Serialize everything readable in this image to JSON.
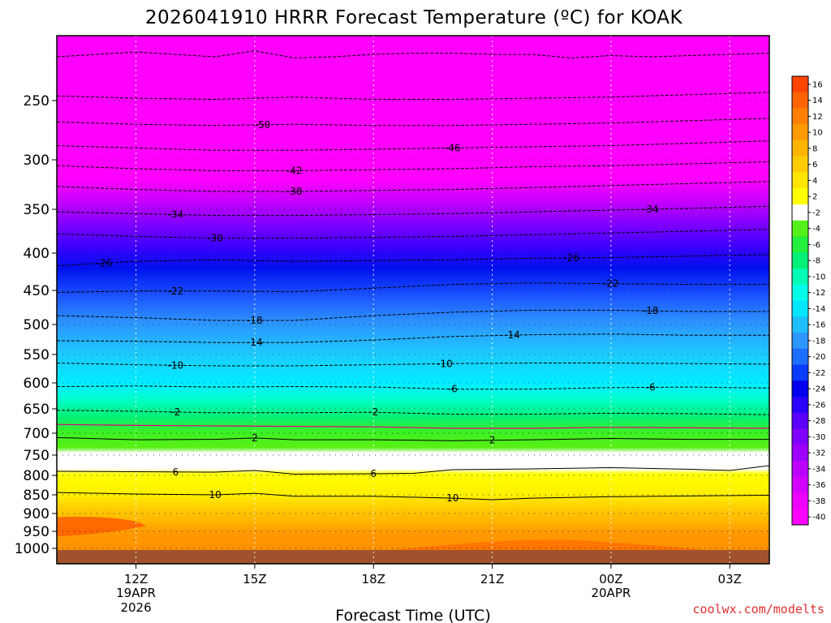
{
  "chart_data": {
    "type": "heatmap",
    "title": "2026041910 HRRR Forecast Temperature (ºC) for KOAK",
    "xlabel": "Forecast Time (UTC)",
    "ylabel": "",
    "credit": "coolwx.com/modelts",
    "y_ticks": [
      "250",
      "300",
      "350",
      "400",
      "450",
      "500",
      "550",
      "600",
      "650",
      "700",
      "750",
      "800",
      "850",
      "900",
      "950",
      "1000"
    ],
    "y_tick_values": [
      250,
      300,
      350,
      400,
      450,
      500,
      550,
      600,
      650,
      700,
      750,
      800,
      850,
      900,
      950,
      1000
    ],
    "x_ticks": [
      {
        "hour": 12,
        "label": "12Z",
        "sub1": "19APR",
        "sub2": "2026"
      },
      {
        "hour": 15,
        "label": "15Z",
        "sub1": "",
        "sub2": ""
      },
      {
        "hour": 18,
        "label": "18Z",
        "sub1": "",
        "sub2": ""
      },
      {
        "hour": 21,
        "label": "21Z",
        "sub1": "",
        "sub2": ""
      },
      {
        "hour": 24,
        "label": "00Z",
        "sub1": "20APR",
        "sub2": ""
      },
      {
        "hour": 27,
        "label": "03Z",
        "sub1": "",
        "sub2": ""
      }
    ],
    "x_range_hours": [
      10,
      28
    ],
    "y_range_hpa": [
      200,
      1025
    ],
    "colorbar": {
      "levels": [
        -40,
        -38,
        -36,
        -34,
        -32,
        -30,
        -28,
        -26,
        -24,
        -22,
        -20,
        -18,
        -16,
        -14,
        -12,
        -10,
        -8,
        -6,
        -4,
        -2,
        2,
        4,
        6,
        8,
        10,
        12,
        14,
        16
      ],
      "tick_labels": [
        "-40",
        "-38",
        "-36",
        "-34",
        "-32",
        "-30",
        "-28",
        "-26",
        "-24",
        "-22",
        "-20",
        "-18",
        "-16",
        "-14",
        "-12",
        "-10",
        "-8",
        "-6",
        "-4",
        "-2",
        "2",
        "4",
        "6",
        "8",
        "10",
        "12",
        "14",
        "16"
      ],
      "colors": [
        "#ff00ff",
        "#ee00ff",
        "#d400ff",
        "#bb00ff",
        "#9d00ff",
        "#8000ff",
        "#5a00ff",
        "#2a00ff",
        "#0000ee",
        "#0a3cff",
        "#1e6eff",
        "#2d96ff",
        "#1ebeff",
        "#00e6ff",
        "#00ffe6",
        "#00ffb4",
        "#00f078",
        "#22f03c",
        "#55f019",
        "#ffffff",
        "#ffff00",
        "#ffe600",
        "#ffcc00",
        "#ffb400",
        "#ff9a00",
        "#ff8000",
        "#ff6400",
        "#ff4400"
      ]
    },
    "contours": [
      {
        "value": -58,
        "label": "",
        "kind": "neg",
        "points": [
          [
            10,
            213
          ],
          [
            11,
            211
          ],
          [
            12,
            209
          ],
          [
            13,
            211
          ],
          [
            14,
            213
          ],
          [
            15,
            208
          ],
          [
            16,
            214
          ],
          [
            17,
            213
          ],
          [
            18,
            211
          ],
          [
            19,
            210
          ],
          [
            20,
            210
          ],
          [
            21,
            211
          ],
          [
            22,
            211
          ],
          [
            23,
            214
          ],
          [
            24,
            212
          ],
          [
            25,
            213
          ],
          [
            26,
            212
          ],
          [
            27,
            211
          ],
          [
            28,
            210
          ]
        ]
      },
      {
        "value": -54,
        "label": "",
        "kind": "neg",
        "points": [
          [
            10,
            246
          ],
          [
            12,
            248
          ],
          [
            14,
            249
          ],
          [
            16,
            247
          ],
          [
            18,
            249
          ],
          [
            20,
            249
          ],
          [
            22,
            248
          ],
          [
            24,
            247
          ],
          [
            26,
            245
          ],
          [
            28,
            243
          ]
        ]
      },
      {
        "value": -50,
        "label": "-50",
        "label_at": 15.2,
        "kind": "neg",
        "points": [
          [
            10,
            268
          ],
          [
            12,
            270
          ],
          [
            14,
            271
          ],
          [
            16,
            270
          ],
          [
            18,
            271
          ],
          [
            20,
            271
          ],
          [
            22,
            270
          ],
          [
            24,
            269
          ],
          [
            26,
            267
          ],
          [
            28,
            265
          ]
        ]
      },
      {
        "value": -46,
        "label": "-46",
        "label_at": 20.0,
        "kind": "neg",
        "points": [
          [
            10,
            288
          ],
          [
            12,
            290
          ],
          [
            14,
            292
          ],
          [
            16,
            292
          ],
          [
            18,
            291
          ],
          [
            20,
            290
          ],
          [
            22,
            289
          ],
          [
            24,
            288
          ],
          [
            26,
            286
          ],
          [
            28,
            284
          ]
        ]
      },
      {
        "value": -42,
        "label": "-42",
        "label_at": 16.0,
        "kind": "neg",
        "points": [
          [
            10,
            306
          ],
          [
            12,
            309
          ],
          [
            14,
            311
          ],
          [
            16,
            311
          ],
          [
            18,
            310
          ],
          [
            20,
            309
          ],
          [
            22,
            307
          ],
          [
            24,
            306
          ],
          [
            26,
            304
          ],
          [
            28,
            302
          ]
        ]
      },
      {
        "value": -38,
        "label": "-38",
        "label_at": 16.0,
        "kind": "neg",
        "points": [
          [
            10,
            327
          ],
          [
            12,
            330
          ],
          [
            14,
            332
          ],
          [
            16,
            332
          ],
          [
            18,
            331
          ],
          [
            20,
            330
          ],
          [
            22,
            328
          ],
          [
            24,
            326
          ],
          [
            26,
            324
          ],
          [
            28,
            322
          ]
        ]
      },
      {
        "value": -34,
        "label": "-34",
        "label_at": 13.0,
        "kind": "neg",
        "label_at2": 25.0,
        "points": [
          [
            10,
            353
          ],
          [
            12,
            355
          ],
          [
            14,
            357
          ],
          [
            16,
            357
          ],
          [
            18,
            356
          ],
          [
            20,
            355
          ],
          [
            22,
            353
          ],
          [
            24,
            351
          ],
          [
            26,
            349
          ],
          [
            28,
            347
          ]
        ]
      },
      {
        "value": -30,
        "label": "-30",
        "label_at": 14.0,
        "kind": "neg",
        "points": [
          [
            10,
            378
          ],
          [
            12,
            381
          ],
          [
            14,
            383
          ],
          [
            16,
            383
          ],
          [
            18,
            382
          ],
          [
            20,
            381
          ],
          [
            22,
            379
          ],
          [
            24,
            377
          ],
          [
            26,
            375
          ],
          [
            28,
            373
          ]
        ]
      },
      {
        "value": -26,
        "label": "-26",
        "label_at": 11.2,
        "kind": "neg",
        "label_at2": 23.0,
        "points": [
          [
            10,
            417
          ],
          [
            12,
            411
          ],
          [
            14,
            409
          ],
          [
            16,
            411
          ],
          [
            18,
            410
          ],
          [
            20,
            409
          ],
          [
            22,
            407
          ],
          [
            24,
            406
          ],
          [
            26,
            404
          ],
          [
            28,
            402
          ]
        ]
      },
      {
        "value": -22,
        "label": "-22",
        "label_at": 13.0,
        "kind": "neg",
        "label_at2": 24.0,
        "points": [
          [
            10,
            453
          ],
          [
            12,
            451
          ],
          [
            14,
            451
          ],
          [
            16,
            452
          ],
          [
            18,
            447
          ],
          [
            20,
            442
          ],
          [
            22,
            440
          ],
          [
            24,
            441
          ],
          [
            26,
            442
          ],
          [
            28,
            442
          ]
        ]
      },
      {
        "value": -18,
        "label": "-18",
        "label_at": 15.0,
        "kind": "neg",
        "label_at2": 25.0,
        "points": [
          [
            10,
            487
          ],
          [
            12,
            490
          ],
          [
            14,
            494
          ],
          [
            16,
            494
          ],
          [
            18,
            487
          ],
          [
            20,
            482
          ],
          [
            22,
            479
          ],
          [
            24,
            479
          ],
          [
            26,
            481
          ],
          [
            28,
            481
          ]
        ]
      },
      {
        "value": -14,
        "label": "-14",
        "label_at": 15.0,
        "kind": "neg",
        "label_at2": 21.5,
        "points": [
          [
            10,
            527
          ],
          [
            12,
            528
          ],
          [
            14,
            530
          ],
          [
            16,
            530
          ],
          [
            18,
            526
          ],
          [
            20,
            520
          ],
          [
            22,
            517
          ],
          [
            24,
            516
          ],
          [
            26,
            518
          ],
          [
            28,
            518
          ]
        ]
      },
      {
        "value": -10,
        "label": "-10",
        "label_at": 13.0,
        "kind": "neg",
        "label_at2": 19.8,
        "points": [
          [
            10,
            565
          ],
          [
            12,
            568
          ],
          [
            14,
            570
          ],
          [
            16,
            570
          ],
          [
            18,
            568
          ],
          [
            20,
            566
          ],
          [
            22,
            565
          ],
          [
            24,
            565
          ],
          [
            26,
            566
          ],
          [
            28,
            567
          ]
        ]
      },
      {
        "value": -6,
        "label": "-6",
        "label_at": 20.0,
        "kind": "neg",
        "label_at2": 25.0,
        "points": [
          [
            10,
            607
          ],
          [
            12,
            606
          ],
          [
            14,
            608
          ],
          [
            16,
            607
          ],
          [
            18,
            608
          ],
          [
            20,
            612
          ],
          [
            22,
            612
          ],
          [
            24,
            609
          ],
          [
            26,
            608
          ],
          [
            28,
            610
          ]
        ]
      },
      {
        "value": -2,
        "label": "-2",
        "label_at": 13.0,
        "kind": "neg",
        "label_at2": 18.0,
        "points": [
          [
            10,
            653
          ],
          [
            12,
            655
          ],
          [
            14,
            658
          ],
          [
            16,
            658
          ],
          [
            18,
            657
          ],
          [
            20,
            661
          ],
          [
            22,
            661
          ],
          [
            24,
            659
          ],
          [
            26,
            660
          ],
          [
            28,
            662
          ]
        ]
      },
      {
        "value": 0,
        "label": "",
        "kind": "zero",
        "points": [
          [
            10,
            682
          ],
          [
            12,
            684
          ],
          [
            14,
            685
          ],
          [
            16,
            686
          ],
          [
            18,
            687
          ],
          [
            20,
            690
          ],
          [
            22,
            690
          ],
          [
            24,
            688
          ],
          [
            26,
            689
          ],
          [
            28,
            690
          ]
        ]
      },
      {
        "value": 2,
        "label": "2",
        "label_at": 15.0,
        "kind": "pos",
        "label_at2": 21.0,
        "points": [
          [
            10,
            710
          ],
          [
            12,
            715
          ],
          [
            14,
            714
          ],
          [
            15,
            711
          ],
          [
            16,
            715
          ],
          [
            18,
            715
          ],
          [
            20,
            717
          ],
          [
            22,
            715
          ],
          [
            24,
            712
          ],
          [
            26,
            714
          ],
          [
            28,
            714
          ]
        ]
      },
      {
        "value": 6,
        "label": "6",
        "label_at": 13.0,
        "kind": "pos",
        "label_at2": 18.0,
        "points": [
          [
            10,
            790
          ],
          [
            12,
            791
          ],
          [
            14,
            792
          ],
          [
            15,
            788
          ],
          [
            16,
            797
          ],
          [
            18,
            796
          ],
          [
            19,
            795
          ],
          [
            20,
            786
          ],
          [
            22,
            784
          ],
          [
            24,
            781
          ],
          [
            26,
            785
          ],
          [
            27,
            788
          ],
          [
            28,
            776
          ]
        ]
      },
      {
        "value": 10,
        "label": "10",
        "label_at": 14.0,
        "kind": "pos",
        "label_at2": 20.0,
        "points": [
          [
            10,
            844
          ],
          [
            12,
            848
          ],
          [
            14,
            850
          ],
          [
            15,
            846
          ],
          [
            16,
            854
          ],
          [
            18,
            854
          ],
          [
            20,
            859
          ],
          [
            21,
            863
          ],
          [
            22,
            859
          ],
          [
            24,
            855
          ],
          [
            26,
            853
          ],
          [
            28,
            851
          ]
        ]
      }
    ]
  }
}
